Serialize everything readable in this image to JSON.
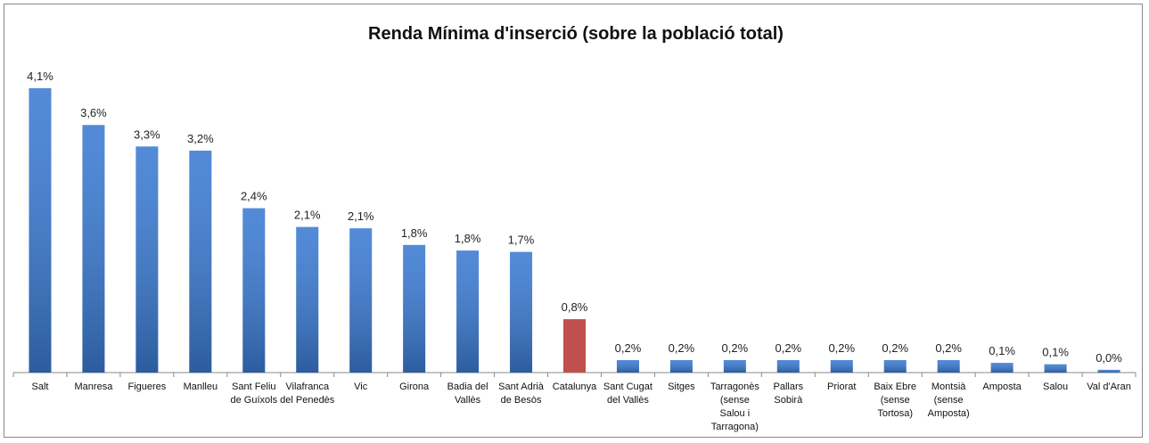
{
  "chart_data": {
    "type": "bar",
    "title": "Renda Mínima d'inserció (sobre la població total)",
    "categories": [
      "Salt",
      "Manresa",
      "Figueres",
      "Manlleu",
      "Sant Feliu de Guíxols",
      "Vilafranca del Penedès",
      "Vic",
      "Girona",
      "Badia del Vallès",
      "Sant Adrià de Besòs",
      "Catalunya",
      "Sant Cugat del Vallès",
      "Sitges",
      "Tarragonès (sense Salou i Tarragona)",
      "Pallars Sobirà",
      "Priorat",
      "Baix Ebre (sense Tortosa)",
      "Montsià (sense Amposta)",
      "Amposta",
      "Salou",
      "Val d'Aran"
    ],
    "values": [
      4.1,
      3.57,
      3.26,
      3.2,
      2.37,
      2.1,
      2.08,
      1.84,
      1.76,
      1.74,
      0.77,
      0.18,
      0.18,
      0.18,
      0.18,
      0.18,
      0.18,
      0.18,
      0.14,
      0.12,
      0.04
    ],
    "value_labels": [
      "4,1%",
      "3,6%",
      "3,3%",
      "3,2%",
      "2,4%",
      "2,1%",
      "2,1%",
      "1,8%",
      "1,8%",
      "1,7%",
      "0,8%",
      "0,2%",
      "0,2%",
      "0,2%",
      "0,2%",
      "0,2%",
      "0,2%",
      "0,2%",
      "0,1%",
      "0,1%",
      "0,0%"
    ],
    "colors": [
      "#3b7bd3",
      "#3b7bd3",
      "#3b7bd3",
      "#3b7bd3",
      "#3b7bd3",
      "#3b7bd3",
      "#3b7bd3",
      "#3b7bd3",
      "#3b7bd3",
      "#3b7bd3",
      "#c0504d",
      "#3b7bd3",
      "#3b7bd3",
      "#3b7bd3",
      "#3b7bd3",
      "#3b7bd3",
      "#3b7bd3",
      "#3b7bd3",
      "#3b7bd3",
      "#3b7bd3",
      "#3b7bd3"
    ]
  }
}
